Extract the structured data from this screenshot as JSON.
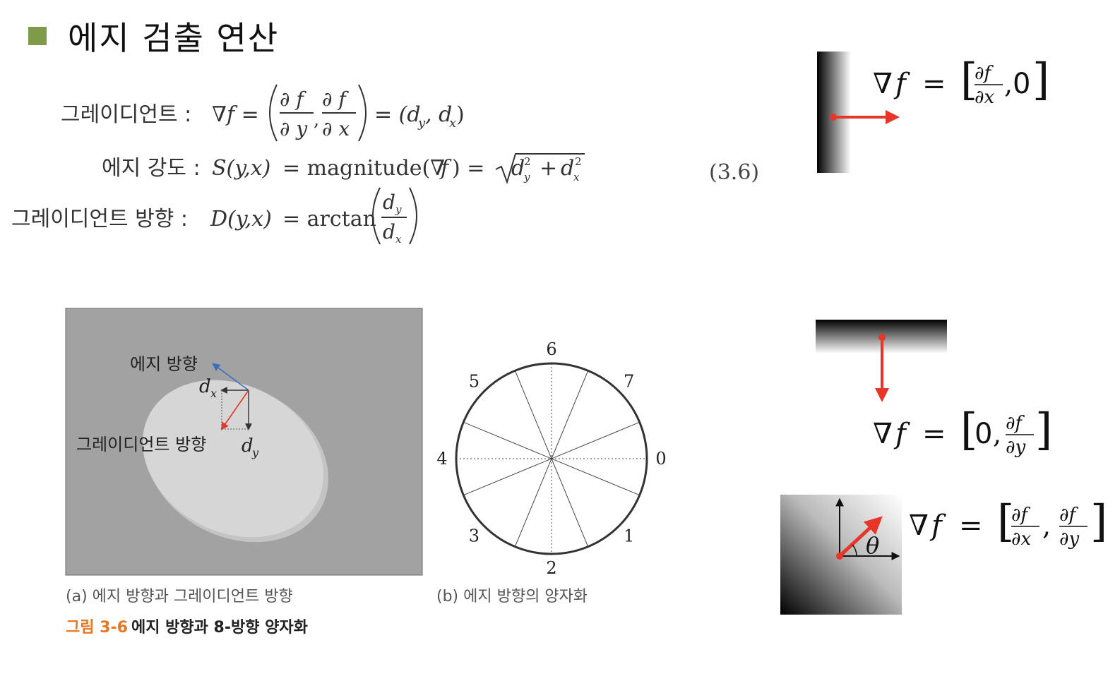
{
  "slide": {
    "title": "에지 검출 연산"
  },
  "equations": {
    "gradient_label": "그레이디언트 :",
    "gradient_formula": "∇f = (∂f/∂y, ∂f/∂x) = (dy, dx)",
    "strength_label": "에지 강도 :",
    "strength_formula": "S(y,x) = magnitude(∇f) = √(dy² + dx²)",
    "direction_label": "그레이디언트 방향 :",
    "direction_formula": "D(y,x) = arctan(dy / dx)",
    "equation_number": "(3.6)"
  },
  "figure_a": {
    "edge_direction_label": "에지 방향",
    "gradient_direction_label": "그레이디언트 방향",
    "dx_label": "dx",
    "dy_label": "dy",
    "caption": "(a) 에지 방향과 그레이디언트 방향"
  },
  "figure_b": {
    "direction_numbers": [
      "0",
      "1",
      "2",
      "3",
      "4",
      "5",
      "6",
      "7"
    ],
    "caption": "(b) 에지 방향의 양자화"
  },
  "figure_caption": {
    "number": "그림 3-6",
    "text": "에지 방향과 8-방향 양자화"
  },
  "examples": {
    "vertical_edge_formula": "∇f = [∂f/∂x, 0]",
    "horizontal_edge_formula": "∇f = [0, ∂f/∂y]",
    "diagonal_edge_formula": "∇f = [∂f/∂x, ∂f/∂y]",
    "theta_label": "θ"
  },
  "colors": {
    "bullet": "#7f9a48",
    "arrow_red": "#e8352a",
    "edge_blue": "#3a6fc0",
    "caption_orange": "#e87722"
  }
}
